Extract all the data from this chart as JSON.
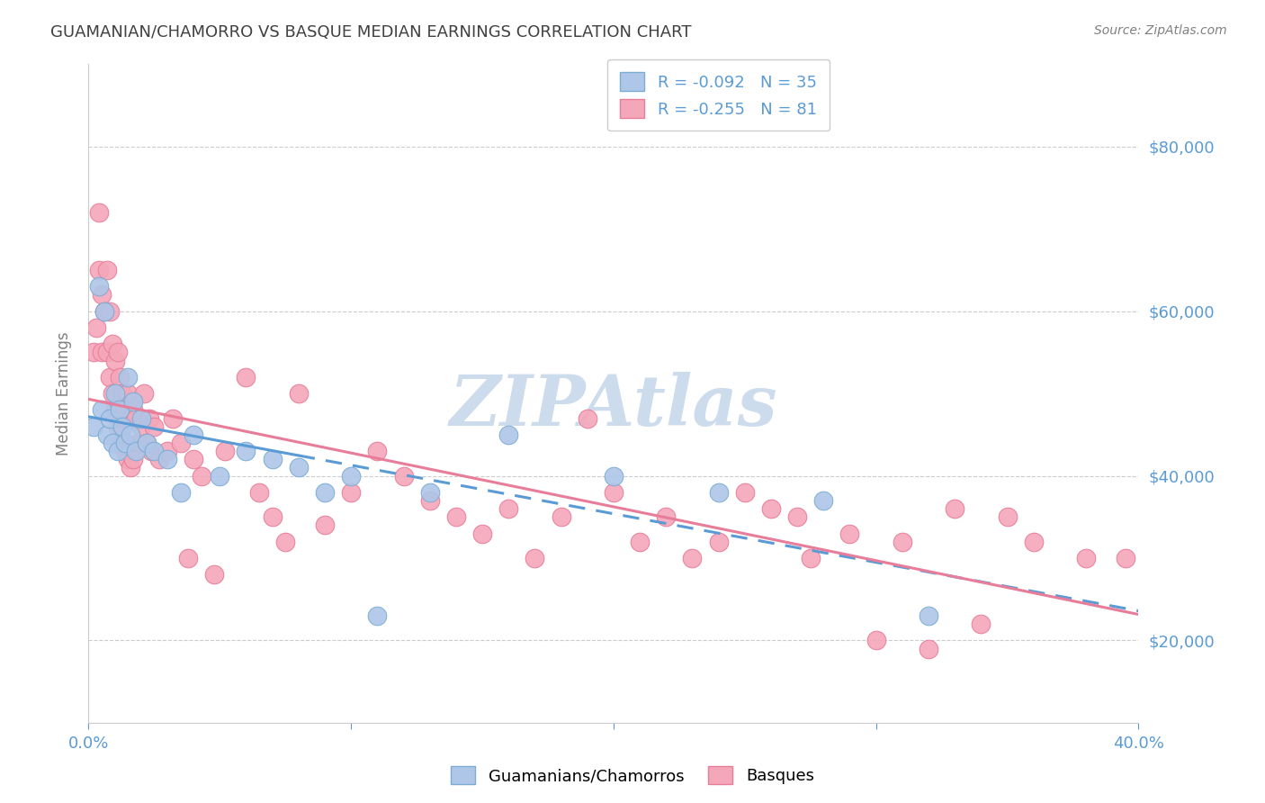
{
  "title": "GUAMANIAN/CHAMORRO VS BASQUE MEDIAN EARNINGS CORRELATION CHART",
  "source": "Source: ZipAtlas.com",
  "ylabel": "Median Earnings",
  "xlim": [
    0.0,
    0.4
  ],
  "ylim": [
    10000,
    90000
  ],
  "yticks": [
    20000,
    40000,
    60000,
    80000
  ],
  "ytick_labels": [
    "$20,000",
    "$40,000",
    "$60,000",
    "$80,000"
  ],
  "xticks": [
    0.0,
    0.1,
    0.2,
    0.3,
    0.4
  ],
  "xtick_labels": [
    "0.0%",
    "",
    "",
    "",
    "40.0%"
  ],
  "legend_entries": [
    {
      "label": "R = -0.092   N = 35",
      "color": "#aec6e8"
    },
    {
      "label": "R = -0.255   N = 81",
      "color": "#f4a7b9"
    }
  ],
  "guamanian_color": "#aec6e8",
  "guamanian_edge_color": "#7badd4",
  "basque_color": "#f4a7b9",
  "basque_edge_color": "#e87d9a",
  "blue_line_color": "#5b9bd5",
  "pink_line_color": "#e87d9a",
  "watermark_color": "#cddcec",
  "title_color": "#404040",
  "tick_label_color": "#5b9bd5",
  "grid_color": "#cccccc",
  "background_color": "#ffffff",
  "blue_line_solid_end": 0.08,
  "guamanian_x": [
    0.002,
    0.004,
    0.005,
    0.006,
    0.007,
    0.008,
    0.009,
    0.01,
    0.011,
    0.012,
    0.013,
    0.014,
    0.015,
    0.016,
    0.017,
    0.018,
    0.02,
    0.022,
    0.025,
    0.03,
    0.035,
    0.04,
    0.05,
    0.06,
    0.07,
    0.08,
    0.09,
    0.1,
    0.11,
    0.13,
    0.16,
    0.2,
    0.24,
    0.28,
    0.32
  ],
  "guamanian_y": [
    46000,
    63000,
    48000,
    60000,
    45000,
    47000,
    44000,
    50000,
    43000,
    48000,
    46000,
    44000,
    52000,
    45000,
    49000,
    43000,
    47000,
    44000,
    43000,
    42000,
    38000,
    45000,
    40000,
    43000,
    42000,
    41000,
    38000,
    40000,
    23000,
    38000,
    45000,
    40000,
    38000,
    37000,
    23000
  ],
  "basque_x": [
    0.002,
    0.003,
    0.004,
    0.004,
    0.005,
    0.005,
    0.006,
    0.007,
    0.007,
    0.008,
    0.008,
    0.009,
    0.009,
    0.01,
    0.01,
    0.011,
    0.011,
    0.012,
    0.012,
    0.013,
    0.013,
    0.014,
    0.014,
    0.015,
    0.015,
    0.016,
    0.016,
    0.017,
    0.017,
    0.018,
    0.019,
    0.02,
    0.021,
    0.022,
    0.023,
    0.024,
    0.025,
    0.027,
    0.03,
    0.032,
    0.035,
    0.038,
    0.04,
    0.043,
    0.048,
    0.052,
    0.06,
    0.065,
    0.07,
    0.075,
    0.08,
    0.09,
    0.1,
    0.11,
    0.12,
    0.13,
    0.14,
    0.15,
    0.16,
    0.17,
    0.18,
    0.19,
    0.2,
    0.21,
    0.22,
    0.24,
    0.26,
    0.275,
    0.29,
    0.31,
    0.33,
    0.35,
    0.36,
    0.38,
    0.395,
    0.3,
    0.27,
    0.25,
    0.23,
    0.32,
    0.34
  ],
  "basque_y": [
    55000,
    58000,
    65000,
    72000,
    62000,
    55000,
    60000,
    65000,
    55000,
    60000,
    52000,
    56000,
    50000,
    54000,
    48000,
    55000,
    46000,
    52000,
    45000,
    50000,
    44000,
    48000,
    43000,
    50000,
    42000,
    47000,
    41000,
    48000,
    42000,
    47000,
    44000,
    46000,
    50000,
    44000,
    47000,
    43000,
    46000,
    42000,
    43000,
    47000,
    44000,
    30000,
    42000,
    40000,
    28000,
    43000,
    52000,
    38000,
    35000,
    32000,
    50000,
    34000,
    38000,
    43000,
    40000,
    37000,
    35000,
    33000,
    36000,
    30000,
    35000,
    47000,
    38000,
    32000,
    35000,
    32000,
    36000,
    30000,
    33000,
    32000,
    36000,
    35000,
    32000,
    30000,
    30000,
    20000,
    35000,
    38000,
    30000,
    19000,
    22000
  ]
}
